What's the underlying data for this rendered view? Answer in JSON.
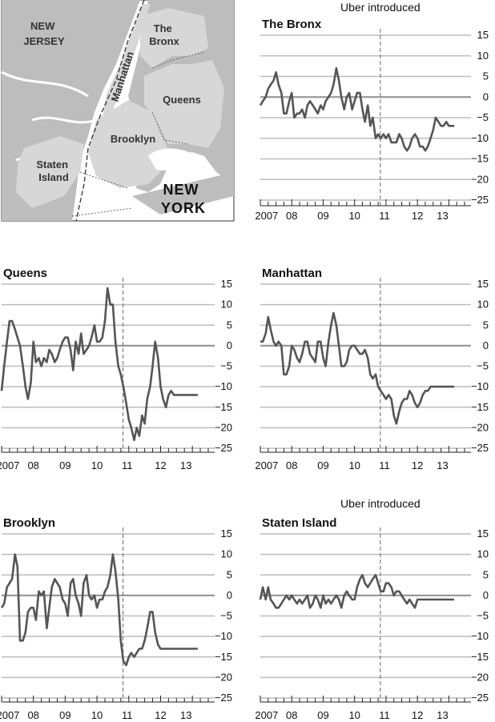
{
  "map": {
    "labels": {
      "new_jersey": [
        "NEW",
        "JERSEY"
      ],
      "manhattan": "Manhattan",
      "bronx": [
        "The",
        "Bronx"
      ],
      "queens": "Queens",
      "brooklyn": "Brooklyn",
      "staten_island": [
        "Staten",
        "Island"
      ],
      "new_york": [
        "NEW",
        "YORK"
      ]
    },
    "colors": {
      "land": "#c8c8c8",
      "boroughs": "#a9a9a9",
      "water": "#ffffff",
      "outline": "#333333"
    }
  },
  "annotation": "Uber introduced",
  "chart_data": [
    {
      "type": "line",
      "title": "The Bronx",
      "x_ticks": [
        "2007",
        "08",
        "09",
        "10",
        "11",
        "12",
        "13"
      ],
      "y_ticks": [
        15,
        10,
        5,
        0,
        -5,
        -10,
        -15,
        -20,
        -25
      ],
      "ylim": [
        -25,
        15
      ],
      "xlim": [
        2007,
        2013.5
      ],
      "uber_introduced_x": 2010.82,
      "annotation_label": "Uber introduced",
      "line_color": "#555555",
      "series": [
        {
          "x": [
            2007.0,
            2007.08,
            2007.17,
            2007.25,
            2007.33,
            2007.42,
            2007.5,
            2007.58,
            2007.67,
            2007.75,
            2007.83,
            2007.92,
            2008.0,
            2008.08,
            2008.17,
            2008.25,
            2008.33,
            2008.42,
            2008.5,
            2008.58,
            2008.67,
            2008.75,
            2008.83,
            2008.92,
            2009.0,
            2009.08,
            2009.17,
            2009.25,
            2009.33,
            2009.42,
            2009.5,
            2009.58,
            2009.67,
            2009.75,
            2009.83,
            2009.92,
            2010.0,
            2010.08,
            2010.17,
            2010.25,
            2010.33,
            2010.42,
            2010.5,
            2010.58,
            2010.67,
            2010.75,
            2010.83,
            2010.92,
            2011.0,
            2011.08,
            2011.17,
            2011.25,
            2011.33,
            2011.42,
            2011.5,
            2011.58,
            2011.67,
            2011.75,
            2011.83,
            2011.92,
            2012.0,
            2012.08,
            2012.17,
            2012.25,
            2012.33,
            2012.42,
            2012.5,
            2012.58,
            2012.67,
            2012.75,
            2012.83,
            2012.92,
            2013.0,
            2013.08,
            2013.17
          ],
          "y": [
            -2,
            -1,
            0,
            2,
            3,
            4,
            6,
            3,
            1,
            -4,
            -4,
            -1,
            1,
            -5,
            -4,
            -4,
            -3,
            -5,
            -2,
            -1,
            -2,
            -3,
            -4,
            -2,
            -3,
            -1,
            0,
            1,
            3,
            7,
            4,
            0,
            -3,
            0,
            1,
            -3,
            -1,
            1,
            1,
            -3,
            -6,
            -2,
            -7,
            -5,
            -10,
            -9,
            -10,
            -9,
            -10,
            -9,
            -11,
            -11,
            -11,
            -9,
            -10,
            -12,
            -13,
            -12,
            -10,
            -9,
            -10,
            -12,
            -12,
            -13,
            -12,
            -10,
            -8,
            -5,
            -6,
            -7,
            -7,
            -6,
            -7,
            -7,
            -7
          ]
        }
      ]
    },
    {
      "type": "line",
      "title": "Queens",
      "x_ticks": [
        "2007",
        "08",
        "09",
        "10",
        "11",
        "12",
        "13"
      ],
      "y_ticks": [
        15,
        10,
        5,
        0,
        -5,
        -10,
        -15,
        -20,
        -25
      ],
      "ylim": [
        -25,
        15
      ],
      "xlim": [
        2007,
        2013.5
      ],
      "uber_introduced_x": 2010.82,
      "line_color": "#555555",
      "series": [
        {
          "x": [
            2007.0,
            2007.08,
            2007.17,
            2007.25,
            2007.33,
            2007.42,
            2007.5,
            2007.58,
            2007.67,
            2007.75,
            2007.83,
            2007.92,
            2008.0,
            2008.08,
            2008.17,
            2008.25,
            2008.33,
            2008.42,
            2008.5,
            2008.58,
            2008.67,
            2008.75,
            2008.83,
            2008.92,
            2009.0,
            2009.08,
            2009.17,
            2009.25,
            2009.33,
            2009.42,
            2009.5,
            2009.58,
            2009.67,
            2009.75,
            2009.83,
            2009.92,
            2010.0,
            2010.08,
            2010.17,
            2010.25,
            2010.33,
            2010.42,
            2010.5,
            2010.58,
            2010.67,
            2010.75,
            2010.83,
            2010.92,
            2011.0,
            2011.08,
            2011.17,
            2011.25,
            2011.33,
            2011.42,
            2011.5,
            2011.58,
            2011.67,
            2011.75,
            2011.83,
            2011.92,
            2012.0,
            2012.08,
            2012.17,
            2012.25,
            2012.33,
            2012.42,
            2012.5,
            2012.58,
            2012.67,
            2012.75,
            2012.83,
            2012.92,
            2013.0,
            2013.08,
            2013.17
          ],
          "y": [
            -11,
            -5,
            1,
            6,
            6,
            4,
            2,
            0,
            -5,
            -10,
            -13,
            -9,
            1,
            -4,
            -3,
            -5,
            -3,
            -4,
            -1,
            -2,
            -4,
            -3,
            -1,
            1,
            2,
            2,
            -1,
            -6,
            1,
            -2,
            3,
            -2,
            -1,
            0,
            2,
            5,
            1,
            1,
            2,
            6,
            14,
            10,
            10,
            1,
            -5,
            -7,
            -10,
            -14,
            -18,
            -20,
            -23,
            -20,
            -22,
            -17,
            -19,
            -13,
            -10,
            -5,
            1,
            -3,
            -10,
            -13,
            -15,
            -12,
            -11,
            -12,
            -12,
            -12,
            -12,
            -12,
            -12,
            -12,
            -12,
            -12,
            -12
          ]
        }
      ]
    },
    {
      "type": "line",
      "title": "Manhattan",
      "x_ticks": [
        "2007",
        "08",
        "09",
        "10",
        "11",
        "12",
        "13"
      ],
      "y_ticks": [
        15,
        10,
        5,
        0,
        -5,
        -10,
        -15,
        -20,
        -25
      ],
      "ylim": [
        -25,
        15
      ],
      "xlim": [
        2007,
        2013.5
      ],
      "uber_introduced_x": 2010.82,
      "line_color": "#555555",
      "series": [
        {
          "x": [
            2007.0,
            2007.08,
            2007.17,
            2007.25,
            2007.33,
            2007.42,
            2007.5,
            2007.58,
            2007.67,
            2007.75,
            2007.83,
            2007.92,
            2008.0,
            2008.08,
            2008.17,
            2008.25,
            2008.33,
            2008.42,
            2008.5,
            2008.58,
            2008.67,
            2008.75,
            2008.83,
            2008.92,
            2009.0,
            2009.08,
            2009.17,
            2009.25,
            2009.33,
            2009.42,
            2009.5,
            2009.58,
            2009.67,
            2009.75,
            2009.83,
            2009.92,
            2010.0,
            2010.08,
            2010.17,
            2010.25,
            2010.33,
            2010.42,
            2010.5,
            2010.58,
            2010.67,
            2010.75,
            2010.83,
            2010.92,
            2011.0,
            2011.08,
            2011.17,
            2011.25,
            2011.33,
            2011.42,
            2011.5,
            2011.58,
            2011.67,
            2011.75,
            2011.83,
            2011.92,
            2012.0,
            2012.08,
            2012.17,
            2012.25,
            2012.33,
            2012.42,
            2012.5,
            2012.58,
            2012.67,
            2012.75,
            2012.83,
            2012.92,
            2013.0,
            2013.08,
            2013.17
          ],
          "y": [
            1,
            1,
            3,
            7,
            4,
            1,
            0,
            1,
            0,
            -7,
            -7,
            -5,
            0,
            -1,
            -3,
            -4,
            -2,
            1,
            1,
            -2,
            -3,
            -4,
            1,
            1,
            -3,
            -5,
            1,
            5,
            8,
            5,
            0,
            -5,
            -5,
            -4,
            -1,
            0,
            0,
            -1,
            -2,
            -2,
            -1,
            -3,
            -7,
            -8,
            -7,
            -10,
            -11,
            -12,
            -13,
            -12,
            -13,
            -17,
            -19,
            -16,
            -14,
            -13,
            -13,
            -11,
            -12,
            -14,
            -15,
            -14,
            -12,
            -11,
            -11,
            -10,
            -10,
            -10,
            -10,
            -10,
            -10,
            -10,
            -10,
            -10,
            -10
          ]
        }
      ]
    },
    {
      "type": "line",
      "title": "Brooklyn",
      "x_ticks": [
        "2007",
        "08",
        "09",
        "10",
        "11",
        "12",
        "13"
      ],
      "y_ticks": [
        15,
        10,
        5,
        0,
        -5,
        -10,
        -15,
        -20,
        -25
      ],
      "ylim": [
        -25,
        15
      ],
      "xlim": [
        2007,
        2013.5
      ],
      "uber_introduced_x": 2010.82,
      "line_color": "#555555",
      "series": [
        {
          "x": [
            2007.0,
            2007.08,
            2007.17,
            2007.25,
            2007.33,
            2007.42,
            2007.5,
            2007.58,
            2007.67,
            2007.75,
            2007.83,
            2007.92,
            2008.0,
            2008.08,
            2008.17,
            2008.25,
            2008.33,
            2008.42,
            2008.5,
            2008.58,
            2008.67,
            2008.75,
            2008.83,
            2008.92,
            2009.0,
            2009.08,
            2009.17,
            2009.25,
            2009.33,
            2009.42,
            2009.5,
            2009.58,
            2009.67,
            2009.75,
            2009.83,
            2009.92,
            2010.0,
            2010.08,
            2010.17,
            2010.25,
            2010.33,
            2010.42,
            2010.5,
            2010.58,
            2010.67,
            2010.75,
            2010.83,
            2010.92,
            2011.0,
            2011.08,
            2011.17,
            2011.25,
            2011.33,
            2011.42,
            2011.5,
            2011.58,
            2011.67,
            2011.75,
            2011.83,
            2011.92,
            2012.0,
            2012.08,
            2012.17,
            2012.25,
            2012.33,
            2012.42,
            2012.5,
            2012.58,
            2012.67,
            2012.75,
            2012.83,
            2012.92,
            2013.0,
            2013.08,
            2013.17
          ],
          "y": [
            -3,
            -2,
            2,
            3,
            4,
            10,
            7,
            -11,
            -11,
            -9,
            -4,
            -3,
            -3,
            -6,
            1,
            0,
            1,
            -8,
            -3,
            2,
            4,
            3,
            2,
            -1,
            -2,
            -5,
            3,
            4,
            0,
            -2,
            -5,
            3,
            5,
            0,
            -1,
            0,
            -3,
            -1,
            -1,
            1,
            2,
            5,
            10,
            6,
            -1,
            -11,
            -16,
            -17,
            -15,
            -14,
            -15,
            -14,
            -13,
            -13,
            -11,
            -8,
            -4,
            -4,
            -9,
            -12,
            -13,
            -13,
            -13,
            -13,
            -13,
            -13,
            -13,
            -13,
            -13,
            -13,
            -13,
            -13,
            -13,
            -13,
            -13
          ]
        }
      ]
    },
    {
      "type": "line",
      "title": "Staten Island",
      "x_ticks": [
        "2007",
        "08",
        "09",
        "10",
        "11",
        "12",
        "13"
      ],
      "y_ticks": [
        15,
        10,
        5,
        0,
        -5,
        -10,
        -15,
        -20,
        -25
      ],
      "ylim": [
        -25,
        15
      ],
      "xlim": [
        2007,
        2013.5
      ],
      "uber_introduced_x": 2010.82,
      "annotation_label": "Uber introduced",
      "line_color": "#555555",
      "series": [
        {
          "x": [
            2007.0,
            2007.08,
            2007.17,
            2007.25,
            2007.33,
            2007.42,
            2007.5,
            2007.58,
            2007.67,
            2007.75,
            2007.83,
            2007.92,
            2008.0,
            2008.08,
            2008.17,
            2008.25,
            2008.33,
            2008.42,
            2008.5,
            2008.58,
            2008.67,
            2008.75,
            2008.83,
            2008.92,
            2009.0,
            2009.08,
            2009.17,
            2009.25,
            2009.33,
            2009.42,
            2009.5,
            2009.58,
            2009.67,
            2009.75,
            2009.83,
            2009.92,
            2010.0,
            2010.08,
            2010.17,
            2010.25,
            2010.33,
            2010.42,
            2010.5,
            2010.58,
            2010.67,
            2010.75,
            2010.83,
            2010.92,
            2011.0,
            2011.08,
            2011.17,
            2011.25,
            2011.33,
            2011.42,
            2011.5,
            2011.58,
            2011.67,
            2011.75,
            2011.83,
            2011.92,
            2012.0,
            2012.08,
            2012.17,
            2012.25,
            2012.33,
            2012.42,
            2012.5,
            2012.58,
            2012.67,
            2012.75,
            2012.83,
            2012.92,
            2013.0,
            2013.08,
            2013.17
          ],
          "y": [
            -1,
            2,
            -1,
            2,
            -1,
            -2,
            -3,
            -3,
            -2,
            -1,
            0,
            -1,
            0,
            -1,
            -2,
            -1,
            -2,
            -1,
            0,
            -3,
            -2,
            0,
            -1,
            -3,
            0,
            -2,
            -1,
            -2,
            -1,
            0,
            -1,
            -3,
            0,
            1,
            0,
            -1,
            -1,
            2,
            4,
            5,
            3,
            2,
            3,
            4,
            5,
            3,
            1,
            1,
            3,
            3,
            2,
            0,
            1,
            1,
            0,
            -1,
            -2,
            -1,
            -2,
            -3,
            -1,
            -1,
            -1,
            -1,
            -1,
            -1,
            -1,
            -1,
            -1,
            -1,
            -1,
            -1,
            -1,
            -1,
            -1
          ]
        }
      ]
    }
  ]
}
